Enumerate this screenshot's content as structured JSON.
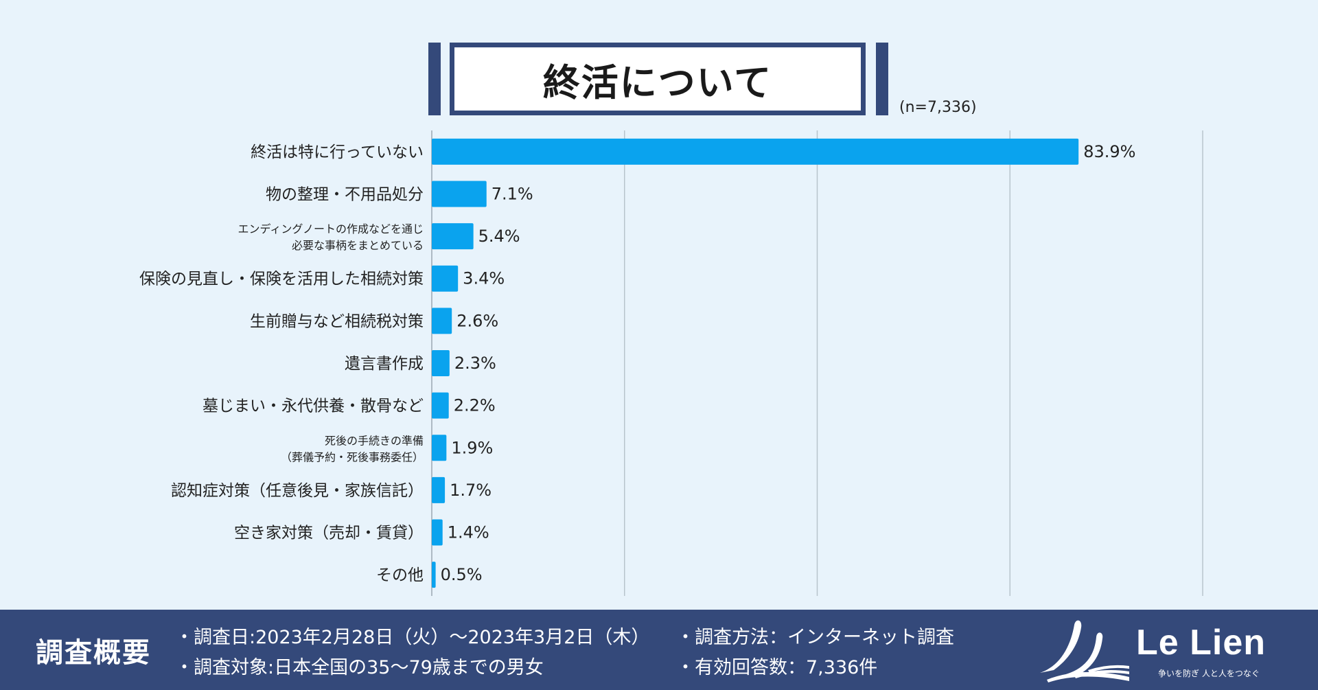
{
  "title": "終活について",
  "sample": "(n=7,336)",
  "chart_data": {
    "type": "bar",
    "orientation": "horizontal",
    "title": "終活について",
    "categories": [
      [
        "終活は特に行っていない"
      ],
      [
        "物の整理・不用品処分"
      ],
      [
        "エンディングノートの作成などを通じ",
        "必要な事柄をまとめている"
      ],
      [
        "保険の見直し・保険を活用した相続対策"
      ],
      [
        "生前贈与など相続税対策"
      ],
      [
        "遺言書作成"
      ],
      [
        "墓じまい・永代供養・散骨など"
      ],
      [
        "死後の手続きの準備",
        "（葬儀予約・死後事務委任）"
      ],
      [
        "認知症対策（任意後見・家族信託）"
      ],
      [
        "空き家対策（売却・賃貸）"
      ],
      [
        "その他"
      ]
    ],
    "values": [
      83.9,
      7.1,
      5.4,
      3.4,
      2.6,
      2.3,
      2.2,
      1.9,
      1.7,
      1.4,
      0.5
    ],
    "value_labels": [
      "83.9%",
      "7.1%",
      "5.4%",
      "3.4%",
      "2.6%",
      "2.3%",
      "2.2%",
      "1.9%",
      "1.7%",
      "1.4%",
      "0.5%"
    ],
    "xlim": [
      0,
      100
    ],
    "gridlines": [
      25,
      50,
      75,
      100
    ],
    "bar_color": "#0aa3ee",
    "grid_color": "#b8c4cc"
  },
  "footer": {
    "title": "調査概要",
    "items": [
      "・調査日:2023年2月28日（火）〜2023年3月2日（木）",
      "・調査対象:日本全国の35〜79歳までの男女",
      "・調査方法：インターネット調査",
      "・有効回答数：7,336件"
    ],
    "logo_name": "Le Lien",
    "logo_tagline": "争いを防ぎ 人と人をつなぐ",
    "bg_color": "#34497a"
  }
}
